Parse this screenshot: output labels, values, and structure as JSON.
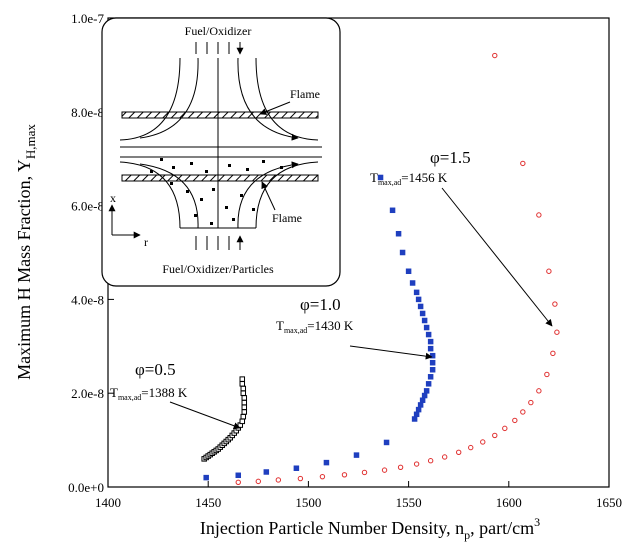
{
  "chart_data": {
    "type": "scatter",
    "xlabel": {
      "text": "Injection Particle Number Density, n",
      "subscript": "p",
      "rest": ", part/cm",
      "superscript": "3"
    },
    "ylabel": {
      "text": "Maximum H Mass Fraction, Y",
      "subscript": "H,max"
    },
    "xlim": [
      1400,
      1650
    ],
    "xticks": [
      1400,
      1450,
      1500,
      1550,
      1600,
      1650
    ],
    "ylim": [
      0,
      1e-07
    ],
    "yticks": [
      {
        "value": 0,
        "label": "0.0e+0"
      },
      {
        "value": 2e-08,
        "label": "2.0e-8"
      },
      {
        "value": 4e-08,
        "label": "4.0e-8"
      },
      {
        "value": 6e-08,
        "label": "6.0e-8"
      },
      {
        "value": 8e-08,
        "label": "8.0e-8"
      },
      {
        "value": 1e-07,
        "label": "1.0e-7"
      }
    ],
    "grid": false,
    "series": [
      {
        "color": "#000000",
        "marker": "open-square",
        "x": [
          1448,
          1449,
          1450,
          1451,
          1452,
          1453,
          1454,
          1455,
          1456,
          1457,
          1458,
          1459,
          1460,
          1461,
          1462,
          1463,
          1464,
          1465,
          1466,
          1467,
          1467.5,
          1468,
          1468,
          1468,
          1468,
          1467.5,
          1467.5,
          1467,
          1467
        ],
        "values": [
          6e-09,
          6.3e-09,
          6.6e-09,
          6.9e-09,
          7.2e-09,
          7.5e-09,
          7.8e-09,
          8.1e-09,
          8.5e-09,
          8.9e-09,
          9.3e-09,
          9.7e-09,
          1.01e-08,
          1.05e-08,
          1.1e-08,
          1.15e-08,
          1.2e-08,
          1.26e-08,
          1.32e-08,
          1.4e-08,
          1.5e-08,
          1.6e-08,
          1.7e-08,
          1.8e-08,
          1.9e-08,
          2e-08,
          2.1e-08,
          2.2e-08,
          2.3e-08
        ]
      },
      {
        "color": "#1f3fbf",
        "marker": "filled-square",
        "x": [
          1449,
          1465,
          1479,
          1494,
          1509,
          1524,
          1539,
          1553,
          1554,
          1555,
          1556,
          1557,
          1558,
          1559,
          1560,
          1561,
          1562,
          1562,
          1562,
          1561,
          1561,
          1560,
          1559,
          1558,
          1557,
          1556,
          1555,
          1554,
          1552,
          1550,
          1547,
          1545,
          1542,
          1536
        ],
        "values": [
          2e-09,
          2.5e-09,
          3.2e-09,
          4e-09,
          5.2e-09,
          6.8e-09,
          9.5e-09,
          1.45e-08,
          1.55e-08,
          1.65e-08,
          1.75e-08,
          1.85e-08,
          1.95e-08,
          2.05e-08,
          2.2e-08,
          2.35e-08,
          2.5e-08,
          2.65e-08,
          2.8e-08,
          2.95e-08,
          3.1e-08,
          3.25e-08,
          3.4e-08,
          3.55e-08,
          3.7e-08,
          3.85e-08,
          4e-08,
          4.15e-08,
          4.35e-08,
          4.6e-08,
          5e-08,
          5.4e-08,
          5.9e-08,
          6.6e-08
        ]
      },
      {
        "color": "#e03030",
        "marker": "open-circle",
        "x": [
          1465,
          1475,
          1485,
          1496,
          1507,
          1518,
          1528,
          1538,
          1546,
          1554,
          1561,
          1568,
          1575,
          1581,
          1587,
          1593,
          1598,
          1603,
          1607,
          1611,
          1615,
          1619,
          1622,
          1624,
          1623,
          1620,
          1615,
          1607,
          1593
        ],
        "values": [
          1e-09,
          1.2e-09,
          1.5e-09,
          1.8e-09,
          2.2e-09,
          2.6e-09,
          3.1e-09,
          3.6e-09,
          4.2e-09,
          4.9e-09,
          5.6e-09,
          6.4e-09,
          7.4e-09,
          8.4e-09,
          9.6e-09,
          1.1e-08,
          1.25e-08,
          1.42e-08,
          1.6e-08,
          1.8e-08,
          2.05e-08,
          2.4e-08,
          2.85e-08,
          3.3e-08,
          3.9e-08,
          4.6e-08,
          5.8e-08,
          6.9e-08,
          9.2e-08
        ]
      }
    ],
    "annotations": [
      {
        "label": "φ=0.5",
        "temp": "T",
        "temp_subscript": "max,ad",
        "temp_value": "=1388 K"
      },
      {
        "label": "φ=1.0",
        "temp": "T",
        "temp_subscript": "max,ad",
        "temp_value": "=1430 K"
      },
      {
        "label": "φ=1.5",
        "temp": "T",
        "temp_subscript": "max,ad",
        "temp_value": "=1456 K"
      }
    ]
  },
  "inset": {
    "top_label": "Fuel/Oxidizer",
    "flame_upper": "Flame",
    "flame_lower": "Flame",
    "bottom_label": "Fuel/Oxidizer/Particles",
    "axis_x": "x",
    "axis_r": "r"
  }
}
